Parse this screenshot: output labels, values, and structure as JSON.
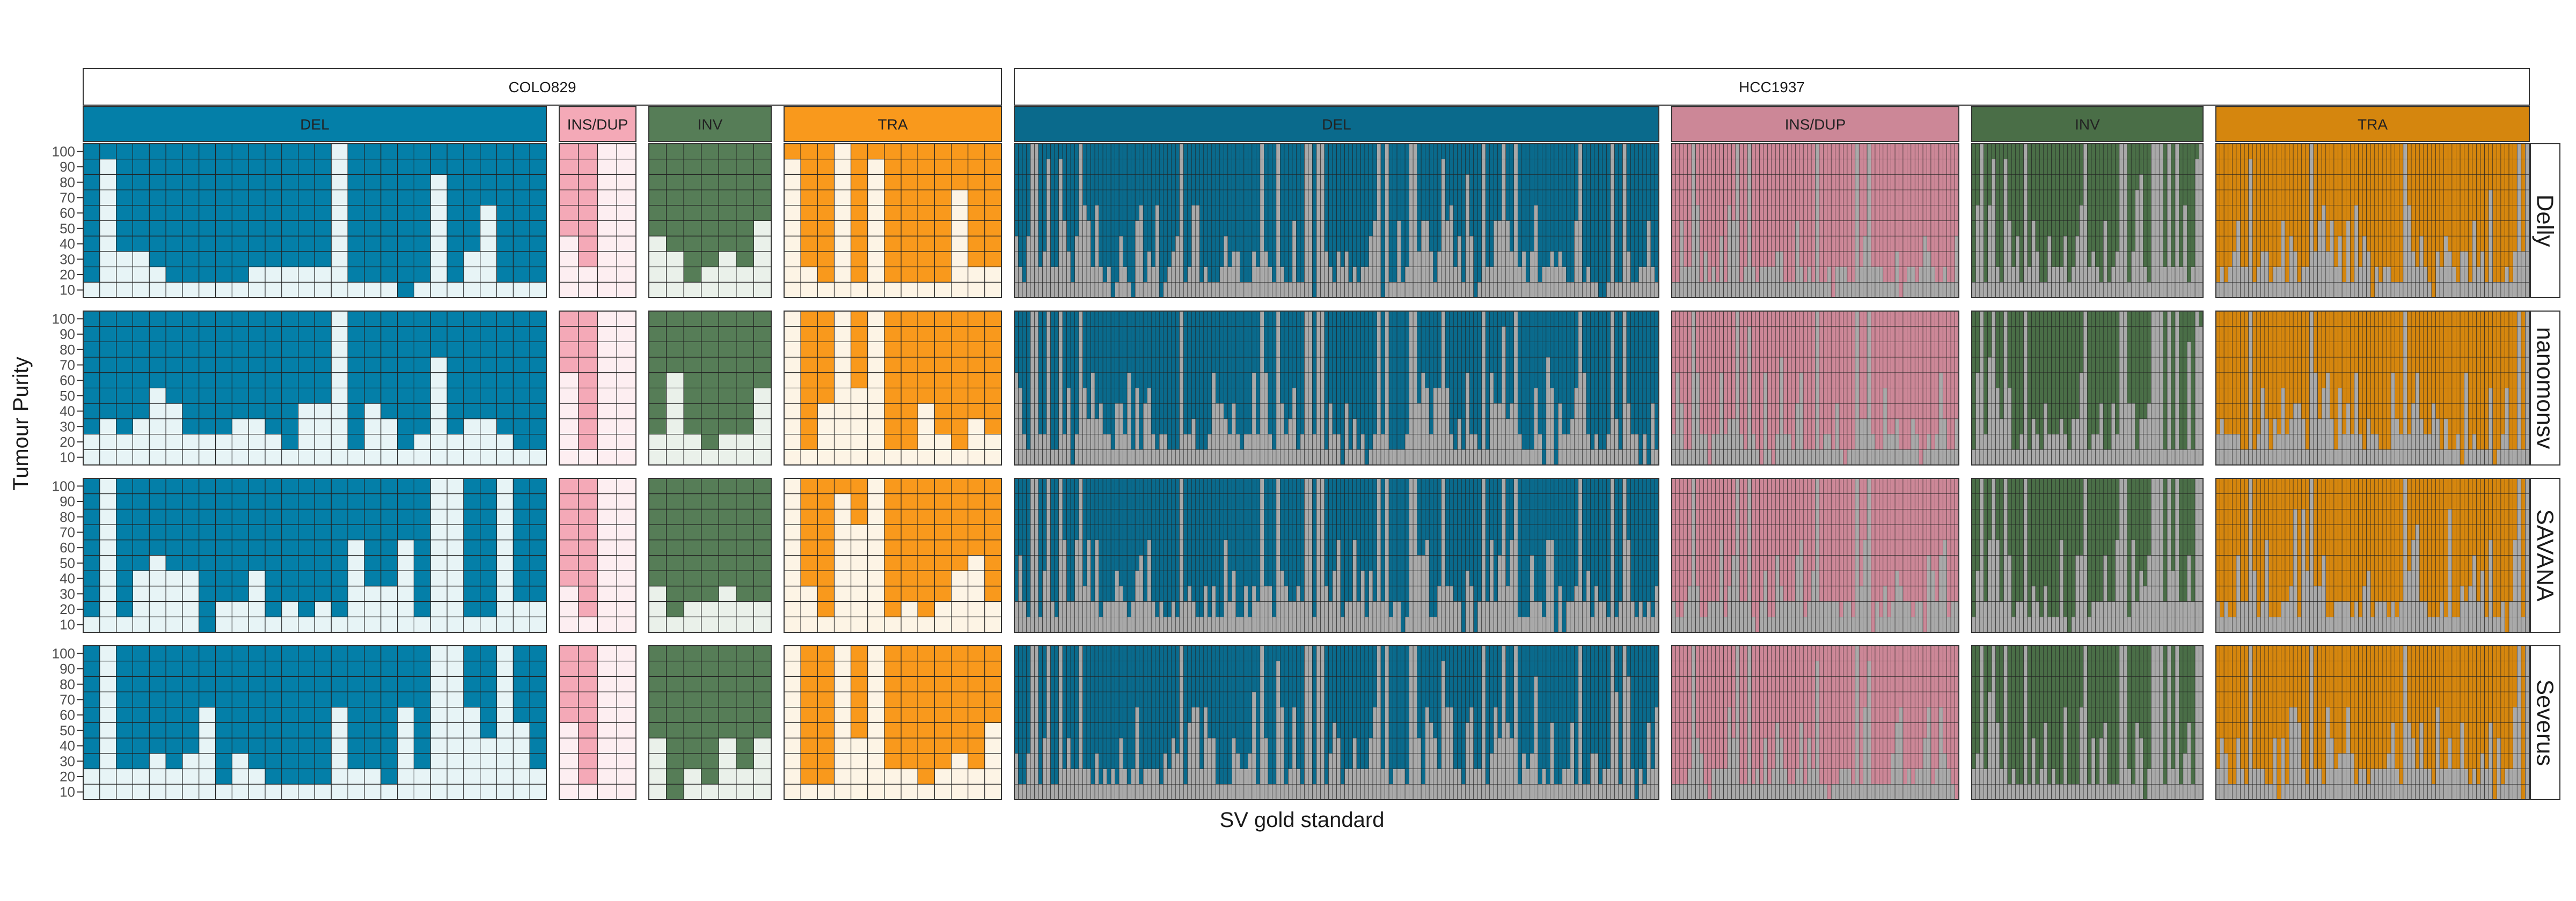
{
  "chart_data": {
    "type": "heatmap",
    "xlabel": "SV gold standard",
    "ylabel": "Tumour Purity",
    "purity_ticks": [
      "100",
      "90",
      "80",
      "70",
      "60",
      "50",
      "40",
      "30",
      "20",
      "10"
    ],
    "samples": [
      {
        "name": "COLO829",
        "categories": [
          {
            "label": "DEL",
            "columns": 28,
            "color": "#047fa8",
            "absent": "#e7f4f6"
          },
          {
            "label": "INS/DUP",
            "columns": 4,
            "color": "#f4a9b7",
            "absent": "#fdeef1"
          },
          {
            "label": "INV",
            "columns": 7,
            "color": "#567d57",
            "absent": "#eaf1ea"
          },
          {
            "label": "TRA",
            "columns": 13,
            "color": "#f9991c",
            "absent": "#fdf4e5"
          }
        ]
      },
      {
        "name": "HCC1937",
        "categories": [
          {
            "label": "DEL",
            "columns": 160,
            "color": "#0a6a8c",
            "absent": "#a9a9a9"
          },
          {
            "label": "INS/DUP",
            "columns": 72,
            "color": "#cc8797",
            "absent": "#a9a9a9"
          },
          {
            "label": "INV",
            "columns": 58,
            "color": "#4a6e47",
            "absent": "#a9a9a9"
          },
          {
            "label": "TRA",
            "columns": 77,
            "color": "#d5860e",
            "absent": "#a9a9a9"
          }
        ]
      }
    ],
    "callers": [
      "Delly",
      "nanomonsv",
      "SAVANA",
      "Severus"
    ],
    "detection_threshold_index": {
      "COLO829": {
        "DEL": {
          "Delly": [
            1,
            9,
            3,
            3,
            2,
            1,
            1,
            1,
            1,
            1,
            2,
            2,
            2,
            2,
            2,
            10,
            1,
            1,
            1,
            0,
            1,
            8,
            1,
            3,
            6,
            1,
            1,
            1
          ],
          "nanomonsv": [
            2,
            3,
            2,
            3,
            5,
            4,
            2,
            2,
            2,
            3,
            3,
            2,
            1,
            4,
            4,
            10,
            1,
            4,
            3,
            1,
            2,
            7,
            2,
            3,
            3,
            2,
            1,
            1
          ]
        }
      }
    },
    "note": ""
  }
}
